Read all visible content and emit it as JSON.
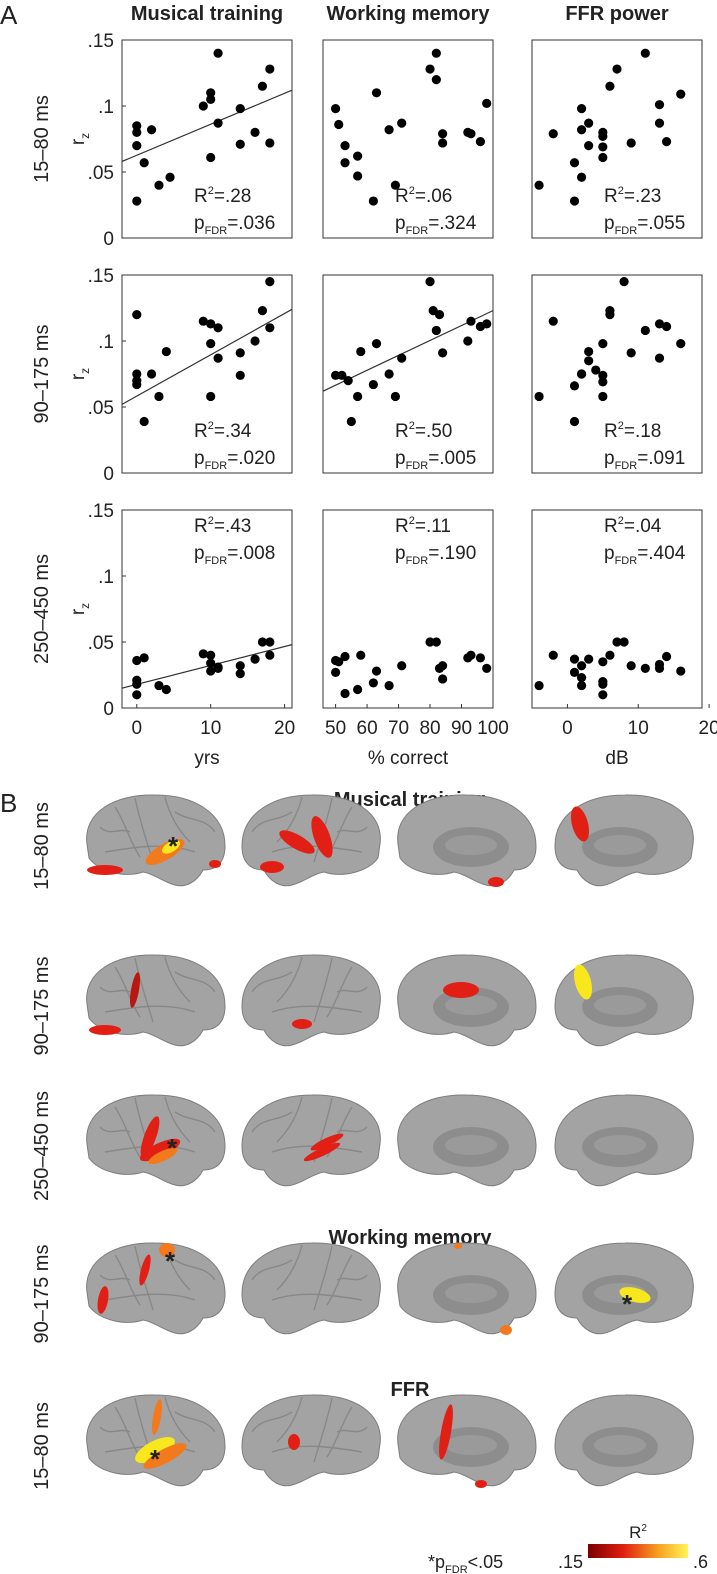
{
  "panel_a": {
    "label": "A",
    "row_labels": [
      "15–80 ms",
      "90–175 ms",
      "250–450 ms"
    ]
  },
  "stat_labels": {
    "r": "R",
    "r_sup": "2",
    "p": "p",
    "p_sub": "FDR"
  },
  "chart_data": [
    {
      "type": "scatter",
      "title": "Musical training",
      "ylabel": "r",
      "ylabel_sub": "z",
      "color": "#000000",
      "x": [
        0,
        0,
        0,
        0,
        1,
        2,
        3,
        4.5,
        9,
        10,
        10,
        10,
        11,
        11,
        14,
        14,
        16,
        17,
        18,
        18
      ],
      "y": [
        0.085,
        0.08,
        0.07,
        0.028,
        0.057,
        0.082,
        0.04,
        0.046,
        0.1,
        0.11,
        0.105,
        0.061,
        0.14,
        0.087,
        0.098,
        0.071,
        0.08,
        0.115,
        0.128,
        0.072
      ],
      "xlim": [
        -2,
        21
      ],
      "ylim": [
        0,
        0.15
      ],
      "yticks": [
        0,
        {
          "value": 0.05,
          "label": ".05"
        },
        {
          "value": 0.1,
          "label": ".1"
        },
        {
          "value": 0.15,
          "label": ".15"
        }
      ],
      "fit": {
        "x": [
          -2,
          21
        ],
        "y": [
          0.058,
          0.112
        ]
      },
      "stats": {
        "r2": "=.28",
        "p": "=.036"
      },
      "stats_position": "bottom"
    },
    {
      "type": "scatter",
      "title": "Working memory",
      "color": "#000000",
      "x": [
        50,
        51,
        53,
        53,
        57,
        57,
        62,
        63,
        67,
        69,
        71,
        80,
        82,
        82,
        84,
        84,
        92,
        93,
        96,
        98
      ],
      "y": [
        0.098,
        0.086,
        0.07,
        0.057,
        0.062,
        0.047,
        0.028,
        0.11,
        0.082,
        0.04,
        0.087,
        0.128,
        0.14,
        0.12,
        0.079,
        0.072,
        0.08,
        0.079,
        0.073,
        0.102
      ],
      "xlim": [
        46,
        100
      ],
      "ylim": [
        0,
        0.15
      ],
      "stats": {
        "r2": "=.06",
        "p": "=.324"
      },
      "stats_position": "bottom"
    },
    {
      "type": "scatter",
      "title": "FFR power",
      "color": "#000000",
      "x": [
        -4,
        -2,
        1,
        1,
        2,
        2,
        2,
        3,
        3,
        5,
        5,
        5,
        5,
        6,
        7,
        9,
        11,
        13,
        13,
        14,
        16
      ],
      "y": [
        0.04,
        0.079,
        0.057,
        0.028,
        0.098,
        0.082,
        0.046,
        0.087,
        0.07,
        0.08,
        0.077,
        0.069,
        0.061,
        0.115,
        0.128,
        0.072,
        0.14,
        0.101,
        0.087,
        0.073,
        0.109
      ],
      "xlim": [
        -5,
        19
      ],
      "ylim": [
        0,
        0.15
      ],
      "stats": {
        "r2": "=.23",
        "p": "=.055"
      },
      "stats_position": "bottom"
    },
    {
      "type": "scatter",
      "ylabel": "r",
      "ylabel_sub": "z",
      "color": "#000000",
      "x": [
        0,
        0,
        0,
        0,
        1,
        2,
        3,
        4,
        9,
        10,
        10,
        10,
        11,
        11,
        14,
        14,
        16,
        17,
        18,
        18
      ],
      "y": [
        0.12,
        0.075,
        0.07,
        0.067,
        0.039,
        0.075,
        0.058,
        0.092,
        0.115,
        0.113,
        0.098,
        0.058,
        0.11,
        0.087,
        0.091,
        0.074,
        0.1,
        0.123,
        0.145,
        0.11
      ],
      "xlim": [
        -2,
        21
      ],
      "ylim": [
        0,
        0.15
      ],
      "yticks": [
        0,
        {
          "value": 0.05,
          "label": ".05"
        },
        {
          "value": 0.1,
          "label": ".1"
        },
        {
          "value": 0.15,
          "label": ".15"
        }
      ],
      "fit": {
        "x": [
          -2,
          21
        ],
        "y": [
          0.052,
          0.124
        ]
      },
      "stats": {
        "r2": "=.34",
        "p": "=.020"
      },
      "stats_position": "bottom"
    },
    {
      "type": "scatter",
      "color": "#000000",
      "x": [
        50,
        52,
        54,
        55,
        57,
        58,
        62,
        63,
        67,
        69,
        71,
        80,
        81,
        82,
        83,
        84,
        92,
        93,
        96,
        98
      ],
      "y": [
        0.074,
        0.074,
        0.07,
        0.039,
        0.058,
        0.092,
        0.067,
        0.098,
        0.075,
        0.058,
        0.087,
        0.145,
        0.123,
        0.108,
        0.12,
        0.091,
        0.1,
        0.115,
        0.111,
        0.113
      ],
      "xlim": [
        46,
        100
      ],
      "ylim": [
        0,
        0.15
      ],
      "fit": {
        "x": [
          46,
          100
        ],
        "y": [
          0.062,
          0.123
        ]
      },
      "stats": {
        "r2": "=.50",
        "p": "=.005"
      },
      "stats_position": "bottom"
    },
    {
      "type": "scatter",
      "color": "#000000",
      "x": [
        -4,
        -2,
        1,
        1,
        2,
        2,
        3,
        3,
        4,
        5,
        5,
        5,
        5,
        6,
        6,
        8,
        9,
        11,
        13,
        13,
        14,
        16
      ],
      "y": [
        0.058,
        0.115,
        0.039,
        0.066,
        0.075,
        0.075,
        0.092,
        0.085,
        0.078,
        0.074,
        0.069,
        0.058,
        0.098,
        0.12,
        0.123,
        0.145,
        0.091,
        0.108,
        0.113,
        0.087,
        0.111,
        0.098
      ],
      "xlim": [
        -5,
        19
      ],
      "ylim": [
        0,
        0.15
      ],
      "stats": {
        "r2": "=.18",
        "p": "=.091"
      },
      "stats_position": "bottom"
    },
    {
      "type": "scatter",
      "ylabel": "r",
      "ylabel_sub": "z",
      "xlabel": "yrs",
      "color": "#000000",
      "x": [
        0,
        0,
        0,
        0,
        1,
        3,
        4,
        9,
        10,
        10,
        10,
        11,
        11,
        14,
        14,
        16,
        17,
        18,
        18
      ],
      "y": [
        0.036,
        0.021,
        0.018,
        0.01,
        0.038,
        0.017,
        0.014,
        0.041,
        0.04,
        0.034,
        0.028,
        0.031,
        0.03,
        0.032,
        0.026,
        0.037,
        0.05,
        0.05,
        0.04
      ],
      "xlim": [
        -2,
        21
      ],
      "ylim": [
        0,
        0.15
      ],
      "xticks": [
        0,
        10,
        20
      ],
      "yticks": [
        0,
        {
          "value": 0.05,
          "label": ".05"
        },
        {
          "value": 0.1,
          "label": ".1"
        },
        {
          "value": 0.15,
          "label": ".15"
        }
      ],
      "fit": {
        "x": [
          -2,
          21
        ],
        "y": [
          0.015,
          0.048
        ]
      },
      "stats": {
        "r2": "=.43",
        "p": "=.008"
      },
      "stats_position": "top"
    },
    {
      "type": "scatter",
      "xlabel": "% correct",
      "color": "#000000",
      "x": [
        50,
        50,
        51,
        53,
        53,
        57,
        58,
        62,
        63,
        67,
        71,
        80,
        82,
        83,
        84,
        84,
        92,
        93,
        96,
        98
      ],
      "y": [
        0.027,
        0.036,
        0.035,
        0.039,
        0.011,
        0.014,
        0.04,
        0.019,
        0.028,
        0.017,
        0.032,
        0.05,
        0.05,
        0.03,
        0.032,
        0.022,
        0.038,
        0.04,
        0.038,
        0.03
      ],
      "xlim": [
        46,
        100
      ],
      "ylim": [
        0,
        0.15
      ],
      "xticks": [
        50,
        60,
        70,
        80,
        90,
        100
      ],
      "stats": {
        "r2": "=.11",
        "p": "=.190"
      },
      "stats_position": "top"
    },
    {
      "type": "scatter",
      "xlabel": "dB",
      "color": "#000000",
      "x": [
        -4,
        -2,
        1,
        1,
        2,
        2,
        2,
        3,
        5,
        5,
        5,
        5,
        6,
        7,
        8,
        9,
        11,
        13,
        13,
        14,
        16
      ],
      "y": [
        0.017,
        0.04,
        0.037,
        0.027,
        0.017,
        0.023,
        0.032,
        0.037,
        0.035,
        0.02,
        0.018,
        0.01,
        0.04,
        0.05,
        0.05,
        0.032,
        0.03,
        0.03,
        0.033,
        0.039,
        0.028
      ],
      "xlim": [
        -5,
        19
      ],
      "ylim": [
        0,
        0.15
      ],
      "xticks": [
        0,
        10,
        20
      ],
      "stats": {
        "r2": "=.04",
        "p": "=.404"
      },
      "stats_position": "top"
    }
  ],
  "panel_b": {
    "label": "B",
    "marker": "*",
    "sections": [
      {
        "title": "Musical training",
        "rows": [
          "15–80 ms",
          "90–175 ms",
          "250–450 ms"
        ]
      },
      {
        "title": "Working memory",
        "rows": [
          "90–175 ms"
        ]
      },
      {
        "title": "FFR",
        "rows": [
          "15–80 ms"
        ]
      }
    ],
    "legend": {
      "star": "*",
      "p": "p",
      "p_sub": "FDR",
      "text": "<.05"
    },
    "colorbar": {
      "label": "R",
      "label_sup": "2",
      "ticks": [
        {
          "value": 0.15,
          "label": ".15"
        },
        {
          "value": 0.6,
          "label": ".6"
        }
      ]
    }
  }
}
